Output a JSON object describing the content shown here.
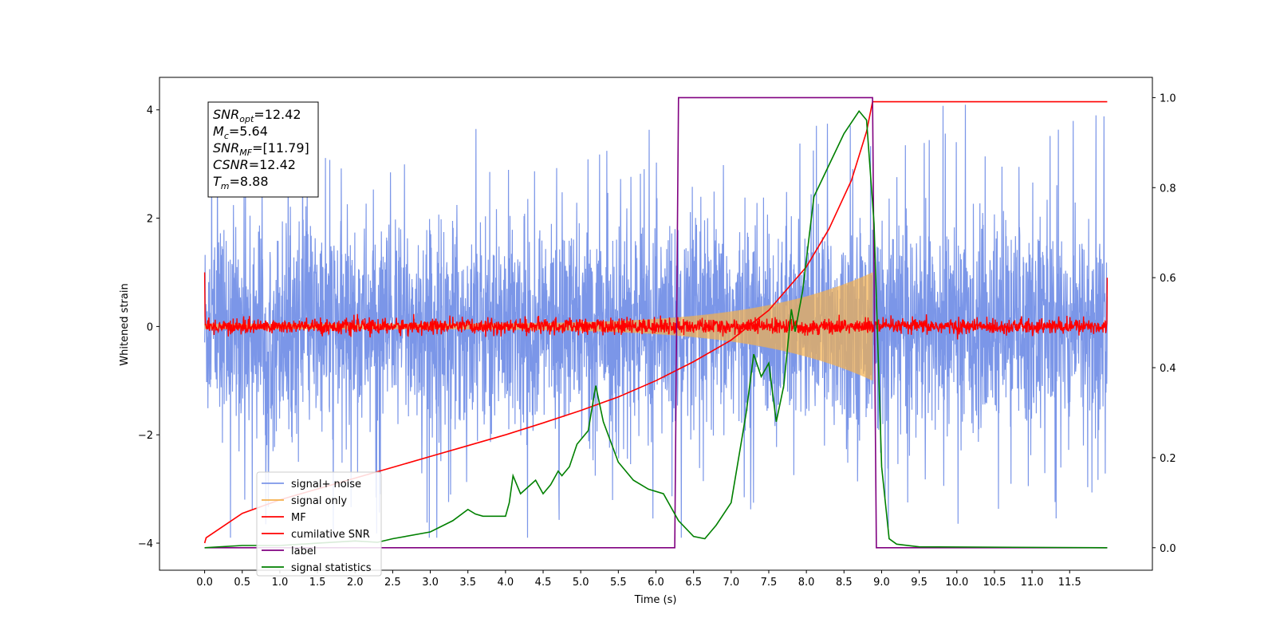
{
  "chart_data": {
    "type": "line",
    "xlabel": "Time (s)",
    "ylabel": "Whitened strain",
    "xlim": [
      -0.6,
      12.6
    ],
    "ylim": [
      -4.5,
      4.6
    ],
    "y2lim": [
      -0.05,
      1.045
    ],
    "x_ticks": [
      "0.0",
      "0.5",
      "1.0",
      "1.5",
      "2.0",
      "2.5",
      "3.0",
      "3.5",
      "4.0",
      "4.5",
      "5.0",
      "5.5",
      "6.0",
      "6.5",
      "7.0",
      "7.5",
      "8.0",
      "8.5",
      "9.0",
      "9.5",
      "10.0",
      "10.5",
      "11.0",
      "11.5"
    ],
    "y_ticks": [
      "−4",
      "−2",
      "0",
      "2",
      "4"
    ],
    "y2_ticks": [
      "0.0",
      "0.2",
      "0.4",
      "0.6",
      "0.8",
      "1.0"
    ],
    "legend_position": "lower left",
    "annotation": {
      "lines": [
        {
          "label": "SNR",
          "sub": "opt",
          "value": "=12.42"
        },
        {
          "label": "M",
          "sub": "c",
          "value": "=5.64"
        },
        {
          "label": "SNR",
          "sub": "MF",
          "value": "=[11.79]"
        },
        {
          "label": "CSNR",
          "sub": "",
          "value": "=12.42"
        },
        {
          "label": "T",
          "sub": "m",
          "value": "=8.88"
        }
      ]
    },
    "series": [
      {
        "name": "signal+ noise",
        "color": "#7b96e8",
        "axis": "left",
        "envelope": {
          "x_start": 0.0,
          "x_end": 12.0,
          "typical_amplitude": 2.3,
          "peak_max": 4.15,
          "peak_min": -3.9
        }
      },
      {
        "name": "signal only",
        "color": "#f5b14d",
        "axis": "left",
        "chirp": {
          "x_start": 0.0,
          "x_end": 8.88,
          "amplitude_start": 0.05,
          "amplitude_end": 1.0
        }
      },
      {
        "name": "MF",
        "color": "#ff0000",
        "axis": "left",
        "envelope": {
          "x_start": 0.0,
          "x_end": 12.0,
          "typical_amplitude": 0.12,
          "edge_value_start": 1.0,
          "edge_value_end": 0.9
        }
      },
      {
        "name": "cumilative SNR",
        "color": "#ff0000",
        "axis": "left",
        "x": [
          0.0,
          0.02,
          0.5,
          1.0,
          1.5,
          2.0,
          2.5,
          3.0,
          3.5,
          4.0,
          4.5,
          5.0,
          5.5,
          6.0,
          6.5,
          7.0,
          7.5,
          8.0,
          8.3,
          8.6,
          8.8,
          8.88,
          8.89,
          12.0
        ],
        "values": [
          -4.0,
          -3.9,
          -3.45,
          -3.2,
          -3.0,
          -2.8,
          -2.6,
          -2.4,
          -2.2,
          -2.0,
          -1.78,
          -1.55,
          -1.3,
          -1.0,
          -0.65,
          -0.25,
          0.3,
          1.1,
          1.8,
          2.7,
          3.6,
          4.15,
          4.15,
          4.15
        ]
      },
      {
        "name": "label",
        "color": "#800080",
        "axis": "right",
        "x": [
          0.0,
          6.25,
          6.3,
          8.88,
          8.93,
          12.0
        ],
        "values": [
          0.0,
          0.0,
          1.0,
          1.0,
          0.0,
          0.0
        ]
      },
      {
        "name": "signal statistics",
        "color": "#008000",
        "axis": "right",
        "x": [
          0.0,
          0.5,
          1.0,
          1.5,
          2.0,
          2.3,
          2.5,
          3.0,
          3.3,
          3.5,
          3.6,
          3.7,
          4.0,
          4.05,
          4.1,
          4.2,
          4.4,
          4.5,
          4.6,
          4.7,
          4.75,
          4.85,
          4.95,
          5.1,
          5.2,
          5.3,
          5.5,
          5.7,
          5.9,
          6.1,
          6.3,
          6.5,
          6.65,
          6.8,
          7.0,
          7.2,
          7.3,
          7.4,
          7.5,
          7.6,
          7.7,
          7.8,
          7.85,
          7.95,
          8.1,
          8.3,
          8.5,
          8.7,
          8.8,
          8.9,
          9.0,
          9.1,
          9.2,
          9.5,
          12.0
        ],
        "values": [
          0.0,
          0.005,
          0.005,
          0.01,
          0.015,
          0.012,
          0.02,
          0.035,
          0.06,
          0.085,
          0.075,
          0.07,
          0.07,
          0.1,
          0.16,
          0.12,
          0.15,
          0.12,
          0.14,
          0.17,
          0.16,
          0.18,
          0.23,
          0.26,
          0.36,
          0.28,
          0.19,
          0.15,
          0.13,
          0.12,
          0.06,
          0.025,
          0.02,
          0.05,
          0.1,
          0.3,
          0.43,
          0.38,
          0.41,
          0.28,
          0.36,
          0.53,
          0.48,
          0.57,
          0.78,
          0.85,
          0.92,
          0.97,
          0.95,
          0.72,
          0.18,
          0.02,
          0.008,
          0.002,
          0.0
        ]
      }
    ]
  }
}
